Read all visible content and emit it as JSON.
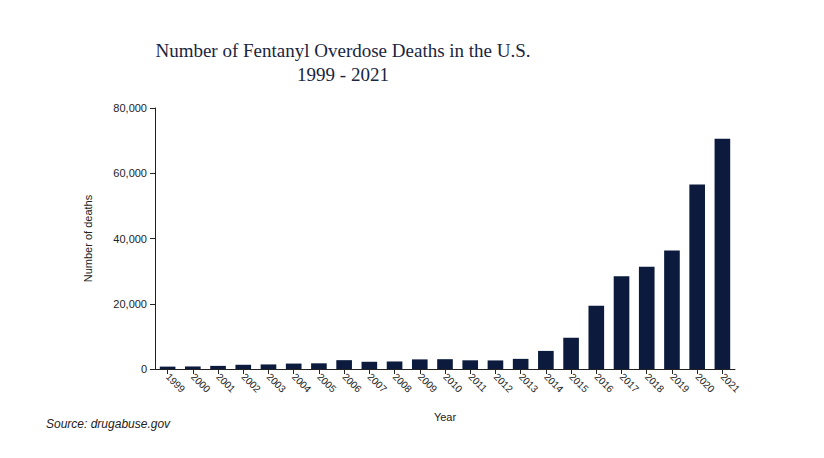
{
  "chart_data": {
    "type": "bar",
    "title": "Number of Fentanyl Overdose Deaths in the U.S.",
    "subtitle": "1999 - 2021",
    "x_label": "Year",
    "y_label": "Number of deaths",
    "source": "Source: drugabuse.gov",
    "categories": [
      "1999",
      "2000",
      "2001",
      "2002",
      "2003",
      "2004",
      "2005",
      "2006",
      "2007",
      "2008",
      "2009",
      "2010",
      "2011",
      "2012",
      "2013",
      "2014",
      "2015",
      "2016",
      "2017",
      "2018",
      "2019",
      "2020",
      "2021"
    ],
    "values": [
      730,
      782,
      957,
      1295,
      1400,
      1664,
      1742,
      2707,
      2213,
      2306,
      2946,
      3007,
      2666,
      2628,
      3105,
      5544,
      9580,
      19413,
      28466,
      31335,
      36359,
      56516,
      70601
    ],
    "color": "#0b1a3d",
    "ylim": [
      0,
      80000
    ],
    "yticks": [
      0,
      {
        "value": 20000,
        "label": "20,000"
      },
      {
        "value": 40000,
        "label": "40,000"
      },
      {
        "value": 60000,
        "label": "60,000"
      },
      {
        "value": 80000,
        "label": "80,000"
      }
    ],
    "grid": false
  }
}
